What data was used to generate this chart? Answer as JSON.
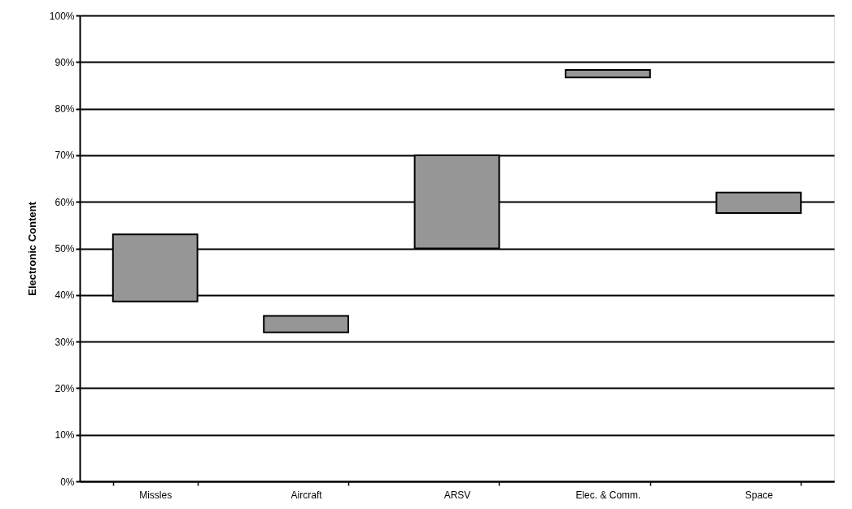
{
  "chart_data": {
    "type": "bar",
    "ylabel": "Electronic Content",
    "categories": [
      "Missles",
      "Aircraft",
      "ARSV",
      "Elec. & Comm.",
      "Space"
    ],
    "base": [
      38.6,
      32,
      50,
      86.7,
      57.6
    ],
    "values": [
      14.4,
      3.5,
      20,
      1.6,
      4.4
    ],
    "color": "#969696",
    "ylim": [
      0,
      100
    ],
    "yticks": [
      {
        "value": 0,
        "label": "0%"
      },
      {
        "value": 10,
        "label": "10%"
      },
      {
        "value": 20,
        "label": "20%"
      },
      {
        "value": 30,
        "label": "30%"
      },
      {
        "value": 40,
        "label": "40%"
      },
      {
        "value": 50,
        "label": "50%"
      },
      {
        "value": 60,
        "label": "60%"
      },
      {
        "value": 70,
        "label": "70%"
      },
      {
        "value": 80,
        "label": "80%"
      },
      {
        "value": 90,
        "label": "90%"
      },
      {
        "value": 100,
        "label": "100%"
      }
    ],
    "grid": "y"
  }
}
